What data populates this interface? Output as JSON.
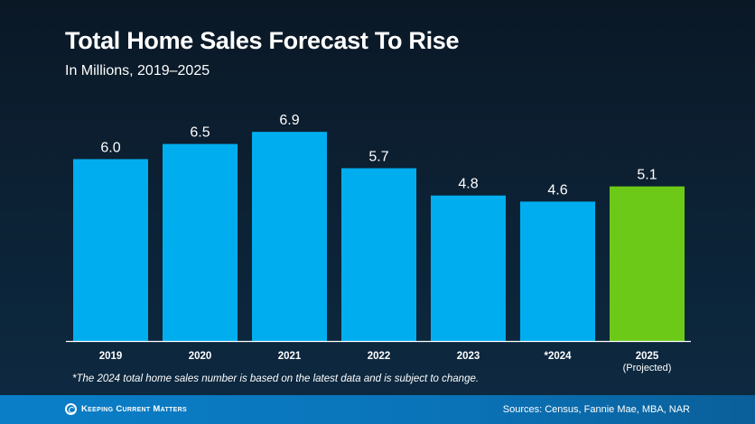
{
  "header": {
    "title": "Total Home Sales Forecast To Rise",
    "subtitle": "In Millions, 2019–2025"
  },
  "footnote": "*The 2024 total home sales number is based on the latest data and is subject to change.",
  "footer": {
    "brand": "Keeping Current Matters",
    "sources": "Sources: Census, Fannie Mae, MBA, NAR"
  },
  "colors": {
    "actual": "#00aeef",
    "projected": "#6cc918",
    "axis": "#ffffff"
  },
  "chart_data": {
    "type": "bar",
    "title": "Total Home Sales Forecast To Rise",
    "subtitle": "In Millions, 2019–2025",
    "xlabel": "",
    "ylabel": "",
    "categories": [
      "2019",
      "2020",
      "2021",
      "2022",
      "2023",
      "*2024",
      "2025"
    ],
    "category_sublabels": [
      "",
      "",
      "",
      "",
      "",
      "",
      "(Projected)"
    ],
    "values": [
      6.0,
      6.5,
      6.9,
      5.7,
      4.8,
      4.6,
      5.1
    ],
    "value_labels": [
      "6.0",
      "6.5",
      "6.9",
      "5.7",
      "4.8",
      "4.6",
      "5.1"
    ],
    "projected": [
      false,
      false,
      false,
      false,
      false,
      false,
      true
    ],
    "ylim": [
      0,
      7.5
    ],
    "grid": false,
    "legend": "none"
  }
}
